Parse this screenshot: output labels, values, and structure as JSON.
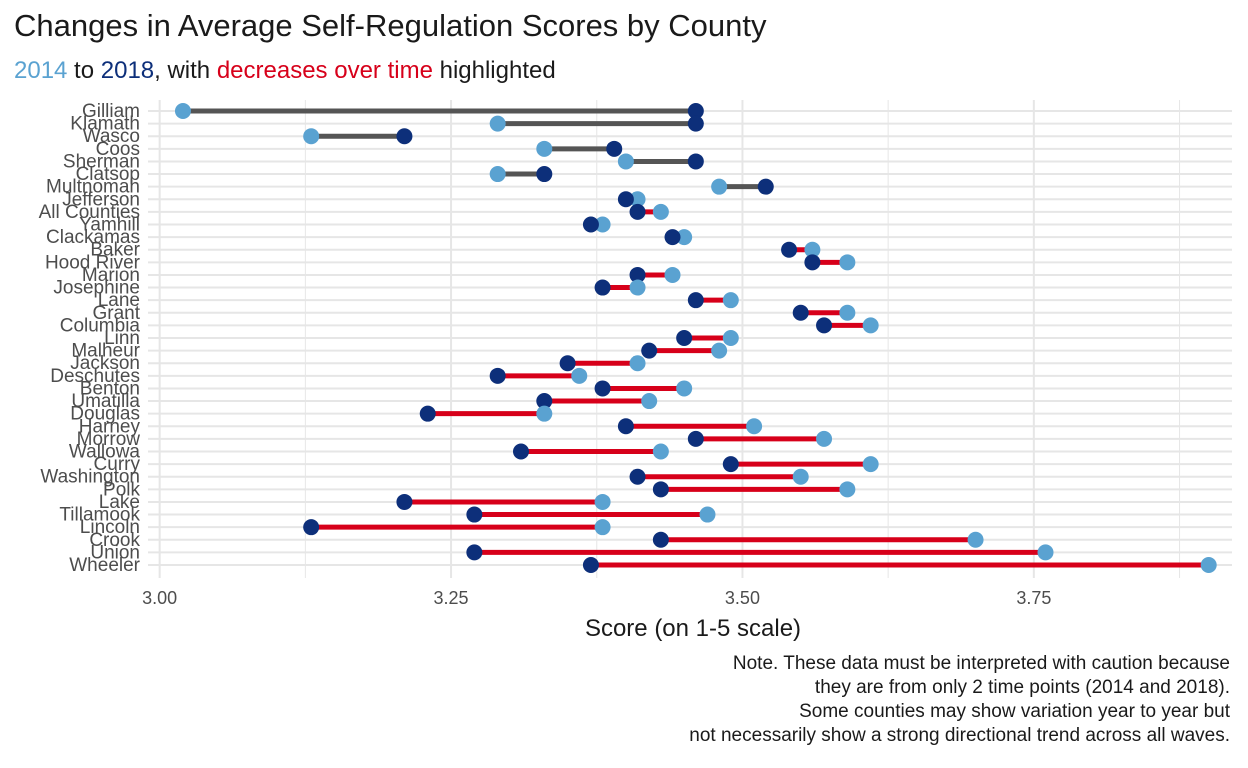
{
  "title": "Changes in Average Self-Regulation Scores by County",
  "subtitle": {
    "year_start": "2014",
    "to_text": " to ",
    "year_end": "2018",
    "with_text": ", with ",
    "highlight": "decreases over time",
    "tail": " highlighted"
  },
  "colors": {
    "year_2014": "#5aa2d1",
    "year_2018": "#0d2f7a",
    "decrease": "#d7001a",
    "increase": "#555555",
    "grid": "#e6e6e6"
  },
  "caption": [
    "Note. These data must be interpreted with caution because",
    "they are from only 2 time points (2014 and 2018).",
    "Some counties may show variation year to year but",
    "not necessarily show a strong directional trend across all waves."
  ],
  "chart_data": {
    "type": "dumbbell",
    "title": "Changes in Average Self-Regulation Scores by County",
    "xlabel": "Score (on 1-5 scale)",
    "ylabel": "",
    "xlim": [
      2.99,
      3.92
    ],
    "xticks": [
      3.0,
      3.25,
      3.5,
      3.75
    ],
    "xtick_labels": [
      "3.00",
      "3.25",
      "3.50",
      "3.75"
    ],
    "grid": true,
    "legend": "none",
    "series": [
      {
        "name": "2014",
        "key": "y2014"
      },
      {
        "name": "2018",
        "key": "y2018"
      }
    ],
    "rows": [
      {
        "county": "Gilliam",
        "y2014": 3.02,
        "y2018": 3.46
      },
      {
        "county": "Klamath",
        "y2014": 3.29,
        "y2018": 3.46
      },
      {
        "county": "Wasco",
        "y2014": 3.13,
        "y2018": 3.21
      },
      {
        "county": "Coos",
        "y2014": 3.33,
        "y2018": 3.39
      },
      {
        "county": "Sherman",
        "y2014": 3.4,
        "y2018": 3.46
      },
      {
        "county": "Clatsop",
        "y2014": 3.29,
        "y2018": 3.33
      },
      {
        "county": "Multnomah",
        "y2014": 3.48,
        "y2018": 3.52
      },
      {
        "county": "Jefferson",
        "y2014": 3.41,
        "y2018": 3.4
      },
      {
        "county": "All Counties",
        "y2014": 3.43,
        "y2018": 3.41
      },
      {
        "county": "Yamhill",
        "y2014": 3.38,
        "y2018": 3.37
      },
      {
        "county": "Clackamas",
        "y2014": 3.45,
        "y2018": 3.44
      },
      {
        "county": "Baker",
        "y2014": 3.56,
        "y2018": 3.54
      },
      {
        "county": "Hood River",
        "y2014": 3.59,
        "y2018": 3.56
      },
      {
        "county": "Marion",
        "y2014": 3.44,
        "y2018": 3.41
      },
      {
        "county": "Josephine",
        "y2014": 3.41,
        "y2018": 3.38
      },
      {
        "county": "Lane",
        "y2014": 3.49,
        "y2018": 3.46
      },
      {
        "county": "Grant",
        "y2014": 3.59,
        "y2018": 3.55
      },
      {
        "county": "Columbia",
        "y2014": 3.61,
        "y2018": 3.57
      },
      {
        "county": "Linn",
        "y2014": 3.49,
        "y2018": 3.45
      },
      {
        "county": "Malheur",
        "y2014": 3.48,
        "y2018": 3.42
      },
      {
        "county": "Jackson",
        "y2014": 3.41,
        "y2018": 3.35
      },
      {
        "county": "Deschutes",
        "y2014": 3.36,
        "y2018": 3.29
      },
      {
        "county": "Benton",
        "y2014": 3.45,
        "y2018": 3.38
      },
      {
        "county": "Umatilla",
        "y2014": 3.42,
        "y2018": 3.33
      },
      {
        "county": "Douglas",
        "y2014": 3.33,
        "y2018": 3.23
      },
      {
        "county": "Harney",
        "y2014": 3.51,
        "y2018": 3.4
      },
      {
        "county": "Morrow",
        "y2014": 3.57,
        "y2018": 3.46
      },
      {
        "county": "Wallowa",
        "y2014": 3.43,
        "y2018": 3.31
      },
      {
        "county": "Curry",
        "y2014": 3.61,
        "y2018": 3.49
      },
      {
        "county": "Washington",
        "y2014": 3.55,
        "y2018": 3.41
      },
      {
        "county": "Polk",
        "y2014": 3.59,
        "y2018": 3.43
      },
      {
        "county": "Lake",
        "y2014": 3.38,
        "y2018": 3.21
      },
      {
        "county": "Tillamook",
        "y2014": 3.47,
        "y2018": 3.27
      },
      {
        "county": "Lincoln",
        "y2014": 3.38,
        "y2018": 3.13
      },
      {
        "county": "Crook",
        "y2014": 3.7,
        "y2018": 3.43
      },
      {
        "county": "Union",
        "y2014": 3.76,
        "y2018": 3.27
      },
      {
        "county": "Wheeler",
        "y2014": 3.9,
        "y2018": 3.37
      }
    ]
  }
}
